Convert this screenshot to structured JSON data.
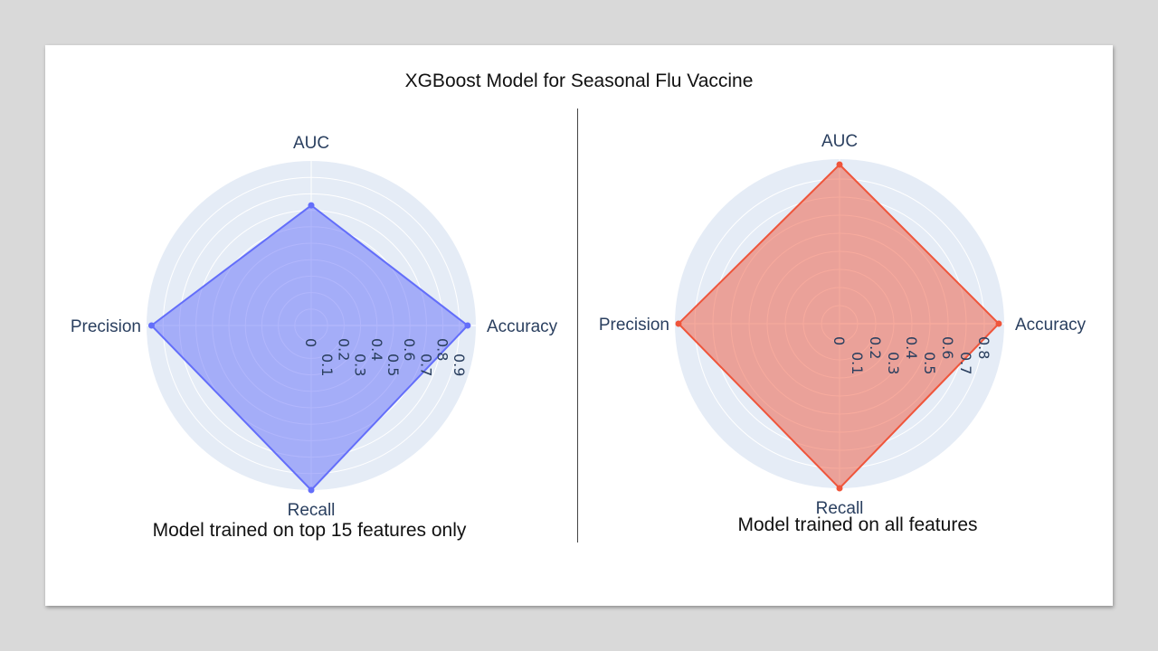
{
  "title": "XGBoost Model for Seasonal Flu Vaccine",
  "chart_data": [
    {
      "type": "radar",
      "caption": "Model trained on top 15 features only",
      "axes": [
        "AUC",
        "Accuracy",
        "Recall",
        "Precision"
      ],
      "values": [
        0.73,
        0.95,
        1.0,
        0.97
      ],
      "radial_range": [
        0,
        1.0
      ],
      "ticks": [
        "0",
        "0.1",
        "0.2",
        "0.3",
        "0.4",
        "0.5",
        "0.6",
        "0.7",
        "0.8",
        "0.9"
      ],
      "tick_values": [
        0,
        0.1,
        0.2,
        0.3,
        0.4,
        0.5,
        0.6,
        0.7,
        0.8,
        0.9
      ],
      "line_color": "#636efa",
      "fill_color": "#636efa"
    },
    {
      "type": "radar",
      "caption": "Model trained on all features",
      "axes": [
        "AUC",
        "Accuracy",
        "Recall",
        "Precision"
      ],
      "values": [
        0.88,
        0.88,
        0.91,
        0.89
      ],
      "radial_range": [
        0,
        0.91
      ],
      "ticks": [
        "0",
        "0.1",
        "0.2",
        "0.3",
        "0.4",
        "0.5",
        "0.6",
        "0.7",
        "0.8"
      ],
      "tick_values": [
        0,
        0.1,
        0.2,
        0.3,
        0.4,
        0.5,
        0.6,
        0.7,
        0.8
      ],
      "line_color": "#ef553b",
      "fill_color": "#ef553b"
    }
  ]
}
